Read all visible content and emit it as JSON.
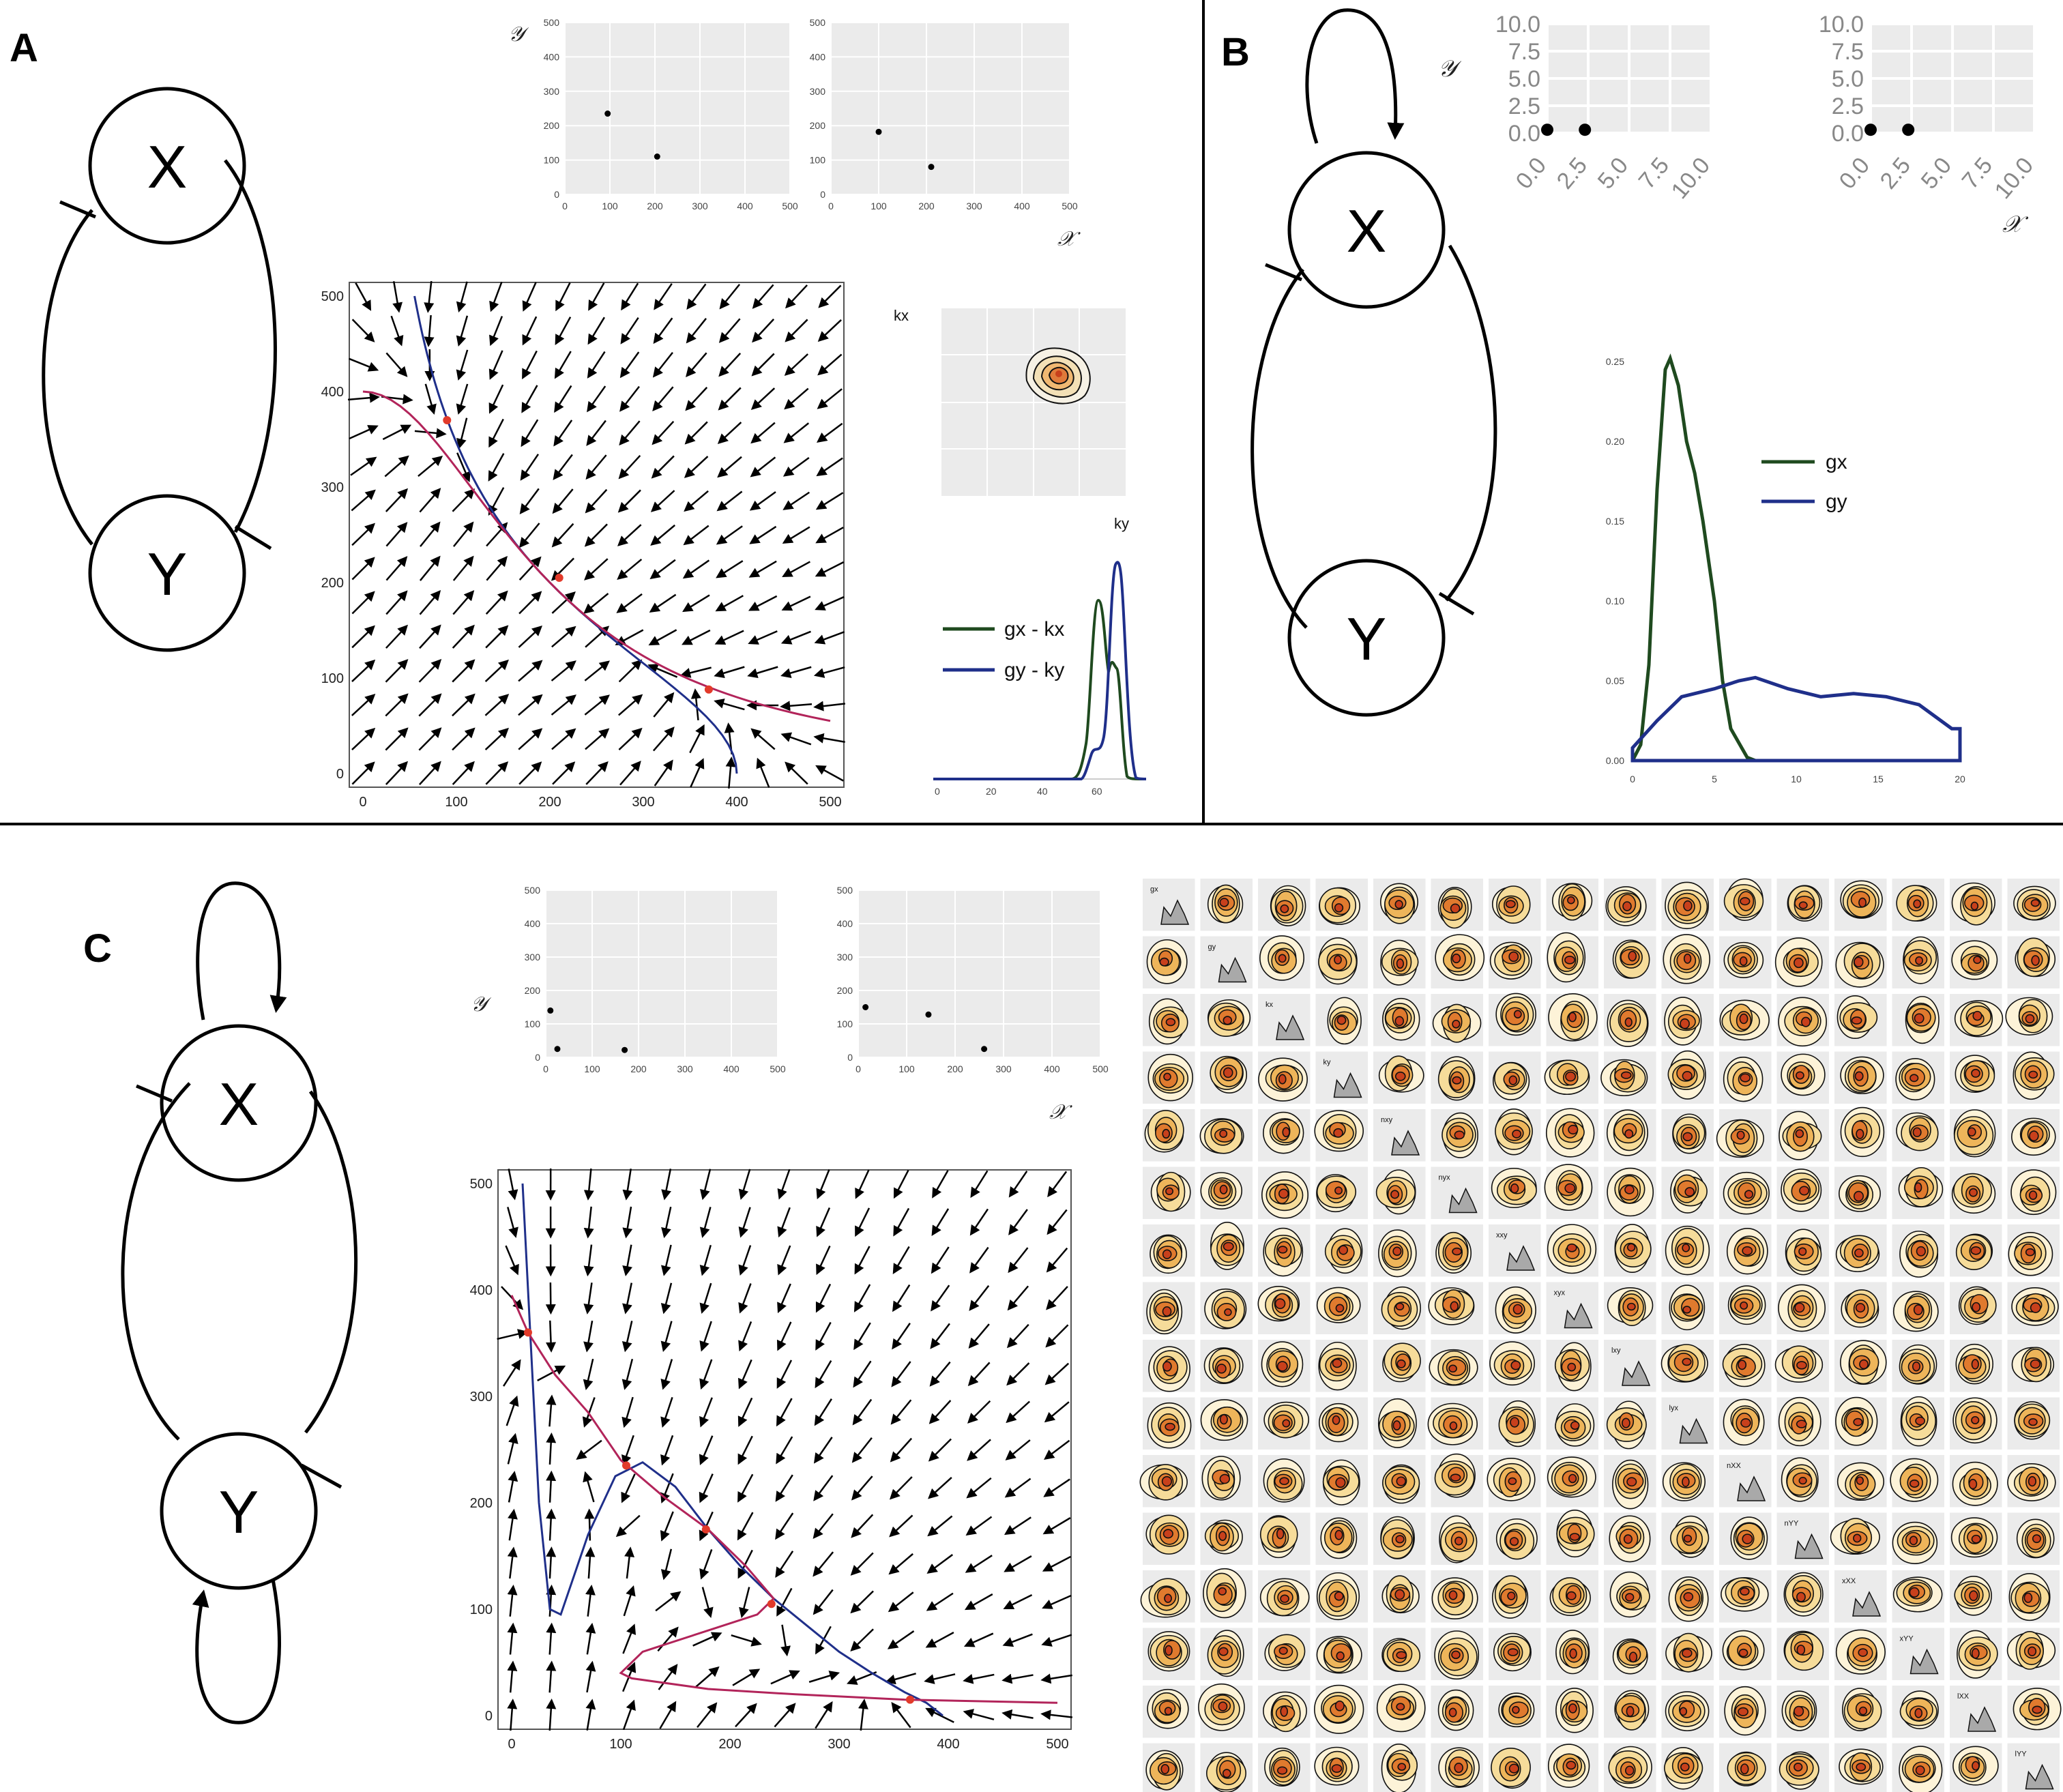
{
  "panels": [
    {
      "id": "A",
      "letter": "A",
      "nodes": [
        "X",
        "Y"
      ]
    },
    {
      "id": "B",
      "letter": "B",
      "nodes": [
        "X",
        "Y"
      ]
    },
    {
      "id": "C",
      "letter": "C",
      "nodes": [
        "X",
        "Y"
      ]
    }
  ],
  "axis_symbols": {
    "y": "𝒴",
    "x": "𝒳"
  },
  "panelA": {
    "scatter_ticks": [
      "0",
      "100",
      "200",
      "300",
      "400",
      "500"
    ],
    "scatter_left_points": [
      [
        95,
        235
      ],
      [
        205,
        110
      ]
    ],
    "scatter_right_points": [
      [
        100,
        182
      ],
      [
        210,
        80
      ]
    ],
    "field_ticks": [
      "0",
      "100",
      "200",
      "300",
      "400",
      "500"
    ],
    "kde_labels": {
      "y": "kx",
      "x": "ky"
    },
    "legend": [
      "gx - kx",
      "gy - ky"
    ],
    "density_ticks_x": [
      "0",
      "20",
      "40",
      "60"
    ]
  },
  "panelB": {
    "scatter_ticks": [
      "0.0",
      "2.5",
      "5.0",
      "7.5",
      "10.0"
    ],
    "scatter_left_points": [
      [
        0.0,
        0.3
      ],
      [
        2.3,
        0.3
      ]
    ],
    "scatter_right_points": [
      [
        0.0,
        0.3
      ],
      [
        2.3,
        0.3
      ]
    ],
    "legend": [
      "gx",
      "gy"
    ],
    "density_ticks_x": [
      "0",
      "5",
      "10",
      "15",
      "20"
    ],
    "density_ticks_y": [
      "0.00",
      "0.05",
      "0.10",
      "0.15",
      "0.20",
      "0.25"
    ]
  },
  "panelC": {
    "scatter_ticks": [
      "0",
      "100",
      "200",
      "300",
      "400",
      "500"
    ],
    "scatter_left_points": [
      [
        10,
        140
      ],
      [
        25,
        25
      ],
      [
        170,
        22
      ]
    ],
    "scatter_right_points": [
      [
        15,
        150
      ],
      [
        145,
        128
      ],
      [
        260,
        25
      ]
    ],
    "field_ticks": [
      "0",
      "100",
      "200",
      "300",
      "400",
      "500"
    ],
    "matrix_diagonal_labels": [
      "gx",
      "gy",
      "kx",
      "ky",
      "nxy",
      "nyx",
      "xxy",
      "xyx",
      "lxy",
      "lyx",
      "nXX",
      "nYY",
      "xXX",
      "xYY",
      "lXX",
      "lYY"
    ]
  },
  "colors": {
    "green": "#1f4a1f",
    "blue": "#1f2f8a",
    "magenta": "#b2245a",
    "red": "#e23a2a",
    "panel_bg": "#ebebeb"
  }
}
